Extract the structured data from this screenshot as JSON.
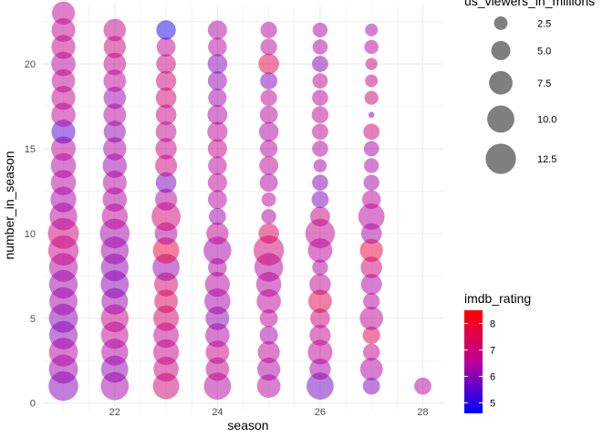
{
  "chart_data": {
    "type": "scatter",
    "xlabel": "season",
    "ylabel": "number_in_season",
    "xlim": [
      20.6,
      28.4
    ],
    "ylim": [
      -0.5,
      23.5
    ],
    "x_ticks": [
      22,
      24,
      26,
      28
    ],
    "y_ticks": [
      0,
      5,
      10,
      15,
      20
    ],
    "grid": true,
    "size_legend": {
      "title": "us_viewers_in_millions",
      "breaks": [
        2.5,
        5.0,
        7.5,
        10.0,
        12.5
      ],
      "labels": [
        "2.5",
        "5.0",
        "7.5",
        "10.0",
        "12.5"
      ]
    },
    "color_legend": {
      "title": "imdb_rating",
      "breaks": [
        5,
        6,
        7,
        8
      ],
      "labels": [
        "5",
        "6",
        "7",
        "8"
      ],
      "range": [
        4.6,
        8.5
      ],
      "low_color": "#0000ff",
      "high_color": "#ff0000"
    },
    "seasons": [
      {
        "x": 21,
        "episodes": [
          [
            1,
            12.0,
            6.0
          ],
          [
            2,
            11.5,
            6.2
          ],
          [
            3,
            11.3,
            6.5
          ],
          [
            4,
            11.0,
            6.1
          ],
          [
            5,
            11.5,
            6.0
          ],
          [
            6,
            10.8,
            6.3
          ],
          [
            7,
            11.0,
            6.2
          ],
          [
            8,
            11.2,
            6.4
          ],
          [
            9,
            12.5,
            6.8
          ],
          [
            10,
            13.0,
            7.0
          ],
          [
            11,
            10.5,
            6.5
          ],
          [
            12,
            9.0,
            6.3
          ],
          [
            13,
            8.6,
            6.5
          ],
          [
            14,
            8.6,
            6.4
          ],
          [
            15,
            8.2,
            6.6
          ],
          [
            16,
            7.8,
            5.5
          ],
          [
            17,
            8.0,
            6.6
          ],
          [
            18,
            7.8,
            6.7
          ],
          [
            19,
            7.5,
            6.6
          ],
          [
            20,
            8.0,
            6.5
          ],
          [
            21,
            7.8,
            6.8
          ],
          [
            22,
            7.6,
            6.7
          ],
          [
            23,
            7.2,
            6.6
          ]
        ]
      },
      {
        "x": 22,
        "episodes": [
          [
            1,
            10.7,
            6.3
          ],
          [
            2,
            10.0,
            6.1
          ],
          [
            3,
            9.8,
            6.4
          ],
          [
            4,
            10.2,
            6.6
          ],
          [
            5,
            10.5,
            6.8
          ],
          [
            6,
            9.6,
            6.2
          ],
          [
            7,
            10.8,
            6.0
          ],
          [
            8,
            10.4,
            6.1
          ],
          [
            9,
            10.6,
            6.2
          ],
          [
            10,
            12.0,
            6.3
          ],
          [
            11,
            9.2,
            6.6
          ],
          [
            12,
            8.0,
            6.4
          ],
          [
            13,
            7.7,
            6.5
          ],
          [
            14,
            8.0,
            6.2
          ],
          [
            15,
            7.3,
            6.4
          ],
          [
            16,
            6.6,
            6.1
          ],
          [
            17,
            7.0,
            6.5
          ],
          [
            18,
            6.8,
            6.2
          ],
          [
            19,
            6.9,
            6.6
          ],
          [
            20,
            6.9,
            6.7
          ],
          [
            21,
            6.7,
            6.9
          ],
          [
            22,
            6.8,
            6.7
          ]
        ]
      },
      {
        "x": 23,
        "episodes": [
          [
            1,
            9.5,
            7.0
          ],
          [
            2,
            8.6,
            6.9
          ],
          [
            3,
            9.0,
            6.8
          ],
          [
            4,
            8.8,
            6.6
          ],
          [
            5,
            8.9,
            7.2
          ],
          [
            6,
            7.5,
            7.4
          ],
          [
            7,
            7.8,
            7.2
          ],
          [
            8,
            10.0,
            6.2
          ],
          [
            9,
            9.4,
            7.8
          ],
          [
            10,
            7.0,
            6.4
          ],
          [
            11,
            11.5,
            7.1
          ],
          [
            12,
            6.6,
            6.5
          ],
          [
            13,
            5.8,
            5.8
          ],
          [
            14,
            6.6,
            6.9
          ],
          [
            15,
            6.2,
            6.8
          ],
          [
            16,
            5.9,
            6.7
          ],
          [
            17,
            5.8,
            6.9
          ],
          [
            18,
            5.8,
            7.1
          ],
          [
            19,
            5.6,
            7.0
          ],
          [
            20,
            5.3,
            6.9
          ],
          [
            21,
            4.9,
            6.7
          ],
          [
            22,
            5.2,
            4.9
          ]
        ]
      },
      {
        "x": 24,
        "episodes": [
          [
            1,
            10.0,
            6.5
          ],
          [
            2,
            7.5,
            6.7
          ],
          [
            3,
            7.5,
            6.8
          ],
          [
            4,
            8.0,
            6.4
          ],
          [
            5,
            7.6,
            6.1
          ],
          [
            6,
            9.2,
            6.3
          ],
          [
            7,
            8.4,
            6.5
          ],
          [
            8,
            4.8,
            6.4
          ],
          [
            9,
            10.5,
            6.3
          ],
          [
            10,
            6.7,
            6.6
          ],
          [
            11,
            4.0,
            6.2
          ],
          [
            12,
            4.9,
            6.5
          ],
          [
            13,
            5.1,
            6.6
          ],
          [
            14,
            4.8,
            6.5
          ],
          [
            15,
            5.0,
            6.8
          ],
          [
            16,
            5.6,
            6.6
          ],
          [
            17,
            5.4,
            6.4
          ],
          [
            18,
            4.6,
            6.3
          ],
          [
            19,
            5.0,
            6.1
          ],
          [
            20,
            5.3,
            6.0
          ],
          [
            21,
            4.8,
            6.5
          ],
          [
            22,
            5.0,
            6.4
          ]
        ]
      },
      {
        "x": 25,
        "episodes": [
          [
            1,
            7.5,
            6.5
          ],
          [
            2,
            7.2,
            6.4
          ],
          [
            3,
            6.6,
            6.6
          ],
          [
            4,
            4.6,
            6.3
          ],
          [
            5,
            4.4,
            6.6
          ],
          [
            6,
            8.0,
            6.6
          ],
          [
            7,
            8.6,
            6.5
          ],
          [
            8,
            11.2,
            6.5
          ],
          [
            9,
            12.5,
            7.0
          ],
          [
            10,
            5.7,
            7.4
          ],
          [
            11,
            3.0,
            6.4
          ],
          [
            12,
            2.8,
            6.6
          ],
          [
            13,
            4.5,
            6.4
          ],
          [
            14,
            4.9,
            6.6
          ],
          [
            15,
            4.2,
            6.5
          ],
          [
            16,
            5.2,
            6.4
          ],
          [
            17,
            4.4,
            6.5
          ],
          [
            18,
            3.7,
            6.6
          ],
          [
            19,
            4.0,
            5.9
          ],
          [
            20,
            5.8,
            7.6
          ],
          [
            21,
            3.8,
            6.6
          ],
          [
            22,
            3.7,
            6.5
          ]
        ]
      },
      {
        "x": 26,
        "episodes": [
          [
            1,
            10.0,
            5.8
          ],
          [
            2,
            6.2,
            6.3
          ],
          [
            3,
            8.3,
            6.6
          ],
          [
            4,
            6.0,
            6.7
          ],
          [
            5,
            5.3,
            6.9
          ],
          [
            6,
            7.5,
            7.6
          ],
          [
            7,
            6.2,
            6.7
          ],
          [
            8,
            3.4,
            6.4
          ],
          [
            9,
            8.1,
            6.5
          ],
          [
            10,
            11.8,
            6.7
          ],
          [
            11,
            5.4,
            6.9
          ],
          [
            12,
            4.0,
            5.9
          ],
          [
            13,
            3.5,
            6.0
          ],
          [
            14,
            2.4,
            6.4
          ],
          [
            15,
            3.5,
            6.5
          ],
          [
            16,
            3.6,
            6.6
          ],
          [
            17,
            3.9,
            6.6
          ],
          [
            18,
            3.5,
            6.6
          ],
          [
            19,
            3.2,
            6.7
          ],
          [
            20,
            3.6,
            6.0
          ],
          [
            21,
            3.1,
            6.4
          ],
          [
            22,
            3.0,
            6.4
          ]
        ]
      },
      {
        "x": 27,
        "episodes": [
          [
            1,
            4.0,
            5.9
          ],
          [
            2,
            7.0,
            6.4
          ],
          [
            3,
            3.9,
            6.8
          ],
          [
            4,
            4.2,
            7.4
          ],
          [
            5,
            7.4,
            6.6
          ],
          [
            6,
            3.8,
            6.5
          ],
          [
            7,
            6.0,
            6.4
          ],
          [
            8,
            6.3,
            7.0
          ],
          [
            9,
            7.2,
            7.8
          ],
          [
            10,
            5.8,
            6.3
          ],
          [
            11,
            9.4,
            6.5
          ],
          [
            12,
            4.8,
            6.6
          ],
          [
            13,
            3.4,
            6.3
          ],
          [
            14,
            3.0,
            6.4
          ],
          [
            15,
            3.2,
            6.3
          ],
          [
            16,
            3.6,
            7.0
          ],
          [
            17,
            0.5,
            6.0
          ],
          [
            18,
            2.6,
            7.0
          ],
          [
            19,
            2.2,
            6.8
          ],
          [
            20,
            2.0,
            6.9
          ],
          [
            21,
            2.7,
            6.5
          ],
          [
            22,
            2.2,
            6.4
          ]
        ]
      },
      {
        "x": 28,
        "episodes": [
          [
            1,
            4.0,
            6.5
          ]
        ]
      }
    ]
  }
}
